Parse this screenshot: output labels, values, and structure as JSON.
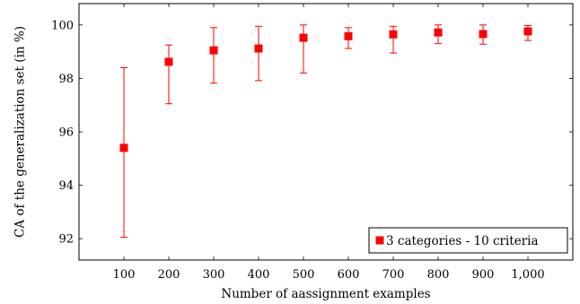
{
  "chart_data": {
    "type": "scatter",
    "title": "",
    "xlabel": "Number of aassignment examples",
    "ylabel": "CA of the generalization set (in %)",
    "x_ticks": [
      100,
      200,
      300,
      400,
      500,
      600,
      700,
      800,
      900,
      1000
    ],
    "x_tick_labels": [
      "100",
      "200",
      "300",
      "400",
      "500",
      "600",
      "700",
      "800",
      "900",
      "1,000"
    ],
    "y_ticks": [
      92,
      94,
      96,
      98,
      100
    ],
    "y_tick_labels": [
      "92",
      "94",
      "96",
      "98",
      "100"
    ],
    "xlim": [
      0,
      1100
    ],
    "ylim": [
      91.2,
      100.8
    ],
    "grid": false,
    "legend_position": "bottom-right",
    "series": [
      {
        "name": "3 categories - 10 criteria",
        "color": "#ff0000",
        "marker": "square",
        "error_bars": true,
        "x": [
          100,
          200,
          300,
          400,
          500,
          600,
          700,
          800,
          900,
          1000
        ],
        "y": [
          95.4,
          98.62,
          99.05,
          99.12,
          99.52,
          99.58,
          99.65,
          99.72,
          99.66,
          99.76
        ],
        "y_low": [
          92.05,
          97.05,
          97.82,
          97.92,
          98.2,
          99.12,
          98.95,
          99.3,
          99.28,
          99.42
        ],
        "y_high": [
          98.4,
          99.25,
          99.9,
          99.95,
          100.0,
          99.9,
          99.95,
          100.0,
          100.0,
          99.98
        ]
      }
    ]
  }
}
